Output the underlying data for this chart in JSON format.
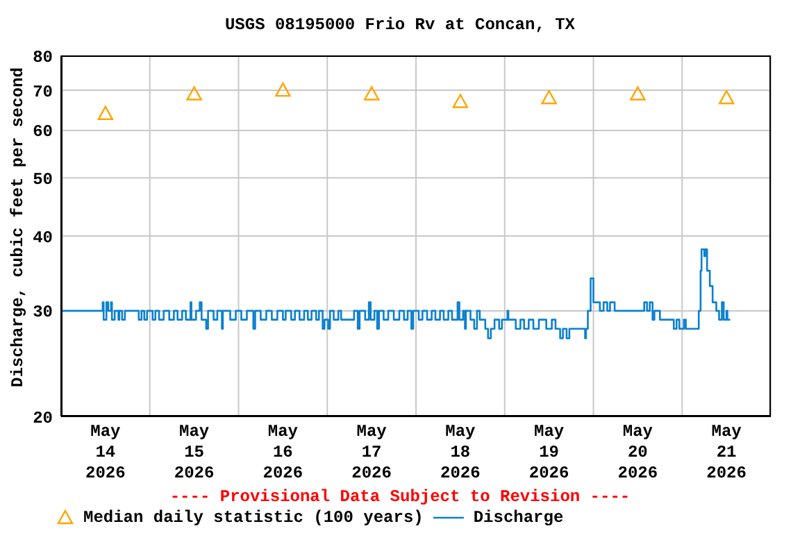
{
  "chart_data": {
    "type": "step",
    "title": "USGS 08195000 Frio Rv at Concan, TX",
    "ylabel": "Discharge, cubic feet per second",
    "annotations": [
      "---- Provisional Data Subject to Revision ----"
    ],
    "log": "y",
    "grid": true,
    "legend": "bottom",
    "xlim": [
      "2026-05-14T00:00",
      "2026-05-22T00:00"
    ],
    "xticks": [
      {
        "value": "2026-05-14T00:00",
        "label": null
      },
      {
        "value": "2026-05-14T12:00",
        "label": "May 14 2026"
      },
      {
        "value": "2026-05-15T00:00",
        "label": null
      },
      {
        "value": "2026-05-15T12:00",
        "label": "May 15 2026"
      },
      {
        "value": "2026-05-16T00:00",
        "label": null
      },
      {
        "value": "2026-05-16T12:00",
        "label": "May 16 2026"
      },
      {
        "value": "2026-05-17T00:00",
        "label": null
      },
      {
        "value": "2026-05-17T12:00",
        "label": "May 17 2026"
      },
      {
        "value": "2026-05-18T00:00",
        "label": null
      },
      {
        "value": "2026-05-18T12:00",
        "label": "May 18 2026"
      },
      {
        "value": "2026-05-19T00:00",
        "label": null
      },
      {
        "value": "2026-05-19T12:00",
        "label": "May 19 2026"
      },
      {
        "value": "2026-05-20T00:00",
        "label": null
      },
      {
        "value": "2026-05-20T12:00",
        "label": "May 20 2026"
      },
      {
        "value": "2026-05-21T00:00",
        "label": null
      },
      {
        "value": "2026-05-21T12:00",
        "label": "May 21 2026"
      },
      {
        "value": "2026-05-22T00:00",
        "label": null
      }
    ],
    "ylim": [
      20,
      80
    ],
    "yticks": [
      20,
      30,
      40,
      50,
      60,
      70,
      80
    ],
    "series": [
      {
        "name": "Median daily statistic (100 years)",
        "type": "scatter",
        "marker": "triangle",
        "color": "#ffa500",
        "x": [
          "2026-05-14T12:00",
          "2026-05-15T12:00",
          "2026-05-16T12:00",
          "2026-05-17T12:00",
          "2026-05-18T12:00",
          "2026-05-19T12:00",
          "2026-05-20T12:00",
          "2026-05-21T12:00"
        ],
        "values": [
          64,
          69,
          70,
          69,
          67,
          68,
          69,
          68
        ]
      },
      {
        "name": "Discharge",
        "marker": "none",
        "line_style": "solid",
        "color": "#0a80d0",
        "x": [
          "2026-05-14T00:00",
          "2026-05-14T11:15",
          "2026-05-14T11:30",
          "2026-05-14T12:15",
          "2026-05-14T12:45",
          "2026-05-14T13:30",
          "2026-05-14T13:45",
          "2026-05-14T14:30",
          "2026-05-14T15:30",
          "2026-05-14T15:45",
          "2026-05-14T16:30",
          "2026-05-14T17:15",
          "2026-05-14T21:00",
          "2026-05-14T21:45",
          "2026-05-14T22:30",
          "2026-05-14T23:15",
          "2026-05-15T00:45",
          "2026-05-15T01:30",
          "2026-05-15T02:30",
          "2026-05-15T03:45",
          "2026-05-15T05:15",
          "2026-05-15T06:30",
          "2026-05-15T07:30",
          "2026-05-15T08:45",
          "2026-05-15T09:45",
          "2026-05-15T11:00",
          "2026-05-15T11:15",
          "2026-05-15T12:30",
          "2026-05-15T13:30",
          "2026-05-15T14:00",
          "2026-05-15T15:15",
          "2026-05-15T15:45",
          "2026-05-15T17:15",
          "2026-05-15T18:15",
          "2026-05-15T19:30",
          "2026-05-15T19:45",
          "2026-05-15T21:45",
          "2026-05-15T23:15",
          "2026-05-16T00:45",
          "2026-05-16T02:15",
          "2026-05-16T04:00",
          "2026-05-16T04:30",
          "2026-05-16T06:00",
          "2026-05-16T07:30",
          "2026-05-16T09:00",
          "2026-05-16T10:30",
          "2026-05-16T12:00",
          "2026-05-16T12:45",
          "2026-05-16T14:15",
          "2026-05-16T15:15",
          "2026-05-16T16:30",
          "2026-05-16T17:45",
          "2026-05-16T18:45",
          "2026-05-16T19:45",
          "2026-05-16T21:00",
          "2026-05-16T21:45",
          "2026-05-16T22:45",
          "2026-05-16T23:15",
          "2026-05-17T00:15",
          "2026-05-17T00:45",
          "2026-05-17T01:45",
          "2026-05-17T03:00",
          "2026-05-17T03:45",
          "2026-05-17T07:15",
          "2026-05-17T08:15",
          "2026-05-17T08:45",
          "2026-05-17T10:15",
          "2026-05-17T11:15",
          "2026-05-17T11:45",
          "2026-05-17T12:45",
          "2026-05-17T13:30",
          "2026-05-17T14:00",
          "2026-05-17T15:15",
          "2026-05-17T16:30",
          "2026-05-17T18:00",
          "2026-05-17T19:30",
          "2026-05-17T20:45",
          "2026-05-17T21:45",
          "2026-05-17T22:45",
          "2026-05-17T23:15",
          "2026-05-18T00:45",
          "2026-05-18T01:45",
          "2026-05-18T03:00",
          "2026-05-18T04:15",
          "2026-05-18T05:15",
          "2026-05-18T06:30",
          "2026-05-18T07:30",
          "2026-05-18T08:45",
          "2026-05-18T09:45",
          "2026-05-18T11:15",
          "2026-05-18T11:45",
          "2026-05-18T12:45",
          "2026-05-18T13:15",
          "2026-05-18T13:30",
          "2026-05-18T14:45",
          "2026-05-18T15:45",
          "2026-05-18T16:30",
          "2026-05-18T17:15",
          "2026-05-18T18:45",
          "2026-05-18T19:30",
          "2026-05-18T20:15",
          "2026-05-18T21:15",
          "2026-05-18T22:30",
          "2026-05-18T23:15",
          "2026-05-19T00:45",
          "2026-05-19T01:00",
          "2026-05-19T03:00",
          "2026-05-19T04:15",
          "2026-05-19T05:15",
          "2026-05-19T06:30",
          "2026-05-19T07:45",
          "2026-05-19T09:15",
          "2026-05-19T11:15",
          "2026-05-19T12:45",
          "2026-05-19T13:45",
          "2026-05-19T15:00",
          "2026-05-19T15:45",
          "2026-05-19T16:45",
          "2026-05-19T17:30",
          "2026-05-19T21:45",
          "2026-05-19T22:00",
          "2026-05-19T22:30",
          "2026-05-19T23:15",
          "2026-05-20T00:00",
          "2026-05-20T01:45",
          "2026-05-20T02:45",
          "2026-05-20T03:45",
          "2026-05-20T04:30",
          "2026-05-20T05:45",
          "2026-05-20T13:45",
          "2026-05-20T14:30",
          "2026-05-20T15:15",
          "2026-05-20T16:00",
          "2026-05-20T16:30",
          "2026-05-20T18:00",
          "2026-05-20T21:45",
          "2026-05-20T22:30",
          "2026-05-20T23:15",
          "2026-05-21T00:30",
          "2026-05-21T01:00",
          "2026-05-21T04:30",
          "2026-05-21T05:00",
          "2026-05-21T05:15",
          "2026-05-21T06:00",
          "2026-05-21T06:15",
          "2026-05-21T06:45",
          "2026-05-21T07:30",
          "2026-05-21T08:15",
          "2026-05-21T09:15",
          "2026-05-21T10:00",
          "2026-05-21T10:45",
          "2026-05-21T11:15",
          "2026-05-21T12:00",
          "2026-05-21T12:15",
          "2026-05-21T13:00"
        ],
        "values": [
          30,
          31,
          29,
          31,
          30,
          31,
          29,
          30,
          29,
          30,
          29,
          30,
          29,
          30,
          29,
          30,
          29,
          30,
          29,
          30,
          29,
          30,
          29,
          30,
          29,
          31,
          29,
          30,
          31,
          29,
          28,
          30,
          29,
          30,
          28,
          30,
          29,
          30,
          29,
          30,
          28,
          30,
          29,
          30,
          29,
          30,
          29,
          30,
          29,
          30,
          29,
          30,
          29,
          30,
          29,
          30,
          28,
          29,
          28,
          30,
          29,
          30,
          29,
          30,
          28,
          30,
          29,
          31,
          29,
          30,
          28,
          30,
          29,
          30,
          29,
          30,
          29,
          30,
          28,
          30,
          29,
          30,
          29,
          30,
          29,
          30,
          29,
          30,
          29,
          31,
          29,
          30,
          28,
          30,
          29,
          28,
          30,
          29,
          28,
          27,
          28,
          29,
          28,
          29,
          30,
          29,
          28,
          29,
          28,
          29,
          28,
          29,
          28,
          29,
          28,
          27,
          28,
          27,
          28,
          27,
          28,
          30,
          34,
          31,
          30,
          31,
          30,
          31,
          30,
          31,
          30,
          31,
          29,
          30,
          29,
          28,
          29,
          28,
          29,
          28,
          30,
          35,
          38,
          37,
          38,
          35,
          33,
          31,
          30,
          29,
          31,
          29,
          30,
          29,
          29
        ]
      }
    ]
  }
}
